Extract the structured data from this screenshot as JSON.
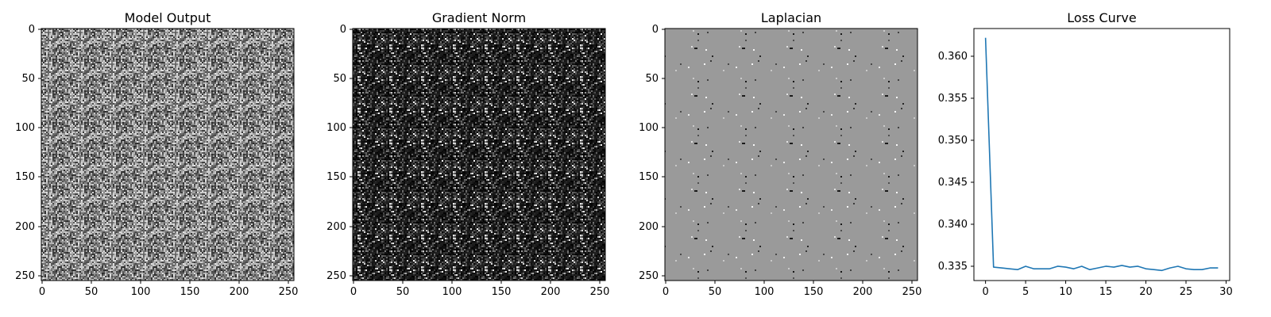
{
  "chart_data": [
    {
      "type": "heatmap",
      "title": "Model Output",
      "colormap": "gray",
      "texture": "uniform-noise",
      "image_size": [
        256,
        256
      ],
      "xlim": [
        0,
        255
      ],
      "ylim": [
        255,
        0
      ],
      "xticks": [
        0,
        50,
        100,
        150,
        200,
        250
      ],
      "yticks": [
        0,
        50,
        100,
        150,
        200,
        250
      ],
      "xtick_labels": [
        "0",
        "50",
        "100",
        "150",
        "200",
        "250"
      ],
      "ytick_labels": [
        "0",
        "50",
        "100",
        "150",
        "200",
        "250"
      ]
    },
    {
      "type": "heatmap",
      "title": "Gradient Norm",
      "colormap": "gray",
      "texture": "sparse-bright-noise",
      "image_size": [
        256,
        256
      ],
      "xlim": [
        0,
        255
      ],
      "ylim": [
        255,
        0
      ],
      "xticks": [
        0,
        50,
        100,
        150,
        200,
        250
      ],
      "yticks": [
        0,
        50,
        100,
        150,
        200,
        250
      ],
      "xtick_labels": [
        "0",
        "50",
        "100",
        "150",
        "200",
        "250"
      ],
      "ytick_labels": [
        "0",
        "50",
        "100",
        "150",
        "200",
        "250"
      ]
    },
    {
      "type": "heatmap",
      "title": "Laplacian",
      "colormap": "gray",
      "texture": "mid-gray-with-specks",
      "image_size": [
        256,
        256
      ],
      "xlim": [
        0,
        255
      ],
      "ylim": [
        255,
        0
      ],
      "xticks": [
        0,
        50,
        100,
        150,
        200,
        250
      ],
      "yticks": [
        0,
        50,
        100,
        150,
        200,
        250
      ],
      "xtick_labels": [
        "0",
        "50",
        "100",
        "150",
        "200",
        "250"
      ],
      "ytick_labels": [
        "0",
        "50",
        "100",
        "150",
        "200",
        "250"
      ]
    },
    {
      "type": "line",
      "title": "Loss Curve",
      "color": "#1f77b4",
      "xlim": [
        -1.45,
        30.45
      ],
      "ylim": [
        0.3333,
        0.3633
      ],
      "xticks": [
        0,
        5,
        10,
        15,
        20,
        25,
        30
      ],
      "yticks": [
        0.335,
        0.34,
        0.345,
        0.35,
        0.355,
        0.36
      ],
      "xtick_labels": [
        "0",
        "5",
        "10",
        "15",
        "20",
        "25",
        "30"
      ],
      "ytick_labels": [
        "0.335",
        "0.340",
        "0.345",
        "0.350",
        "0.355",
        "0.360"
      ],
      "x": [
        0,
        1,
        2,
        3,
        4,
        5,
        6,
        7,
        8,
        9,
        10,
        11,
        12,
        13,
        14,
        15,
        16,
        17,
        18,
        19,
        20,
        21,
        22,
        23,
        24,
        25,
        26,
        27,
        28,
        29
      ],
      "values": [
        0.3622,
        0.3349,
        0.3348,
        0.3347,
        0.3346,
        0.335,
        0.3347,
        0.3347,
        0.3347,
        0.335,
        0.3349,
        0.3347,
        0.335,
        0.3346,
        0.3348,
        0.335,
        0.3349,
        0.3351,
        0.3349,
        0.335,
        0.3347,
        0.3346,
        0.3345,
        0.3348,
        0.335,
        0.3347,
        0.3346,
        0.3346,
        0.3348,
        0.3348
      ]
    }
  ]
}
